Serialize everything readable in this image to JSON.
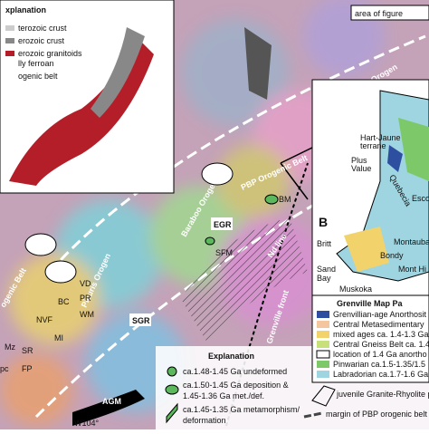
{
  "inset_a": {
    "title": "xplanation",
    "legend": [
      "terozoic crust",
      "erozoic crust",
      "erozoic granitoids",
      "lly ferroan",
      "ogenic belt"
    ]
  },
  "area_label": "area of figure",
  "map_labels": [
    "Pinware Orogen",
    "PBP Orogenic Belt",
    "Baraboo Orogen",
    "Nd line",
    "Grenville front",
    "EGR",
    "SGR",
    "AGM",
    "Picuris Orogen",
    "ogenic Belt",
    "W104°"
  ],
  "sites": [
    "BM",
    "SFM",
    "VD",
    "PR",
    "BC",
    "WM",
    "NVF",
    "Mz",
    "SR",
    "pc",
    "FP",
    "MI"
  ],
  "explanation": {
    "title": "Explanation",
    "items": [
      [
        "ca.1.48-1.45 Ga undeformed"
      ],
      [
        "ca.1.50-1.45 Ga deposition &",
        "1.45-1.36 Ga met./def."
      ],
      [
        "ca.1.45-1.35 Ga metamorphism/",
        "deformation"
      ]
    ],
    "province": [
      "juvenile Granite-Rhyolite provi",
      "margin of PBP orogenic belt"
    ]
  },
  "inset_b": {
    "panel": "B",
    "places": [
      "Hart-Jaune",
      "terrane",
      "Plus",
      "Value",
      "Quebecia",
      "Esco",
      "Britt",
      "Montauba",
      "Bondy",
      "Mont Hi",
      "Sand",
      "Bay",
      "Muskoka"
    ],
    "legend_title": "Grenville Map Pa",
    "legend": [
      "Grenvillian-age Anorthosit",
      "Central Metasedimentary",
      "mixed ages ca. 1.4-1.3 Ga",
      "Central Gneiss Belt ca. 1.4",
      "location of 1.4 Ga anortho",
      "Pinwarian ca.1.5-1.35/1.5",
      "Labradorian ca.1.7-1.6 Ga"
    ]
  }
}
